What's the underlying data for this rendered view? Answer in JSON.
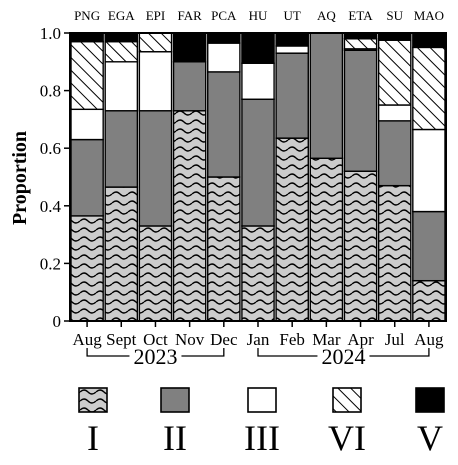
{
  "chart_data": {
    "type": "bar",
    "stacked": true,
    "ylabel": "Proportion",
    "ylim": [
      0,
      1
    ],
    "yticks": [
      "0",
      "0.2",
      "0.4",
      "0.6",
      "0.8",
      "1.0"
    ],
    "top_labels": [
      "PNG",
      "EGA",
      "EPI",
      "FAR",
      "PCA",
      "HU",
      "UT",
      "AQ",
      "ETA",
      "SU",
      "MAO"
    ],
    "categories": [
      "Aug",
      "Sept",
      "Oct",
      "Nov",
      "Dec",
      "Jan",
      "Feb",
      "Mar",
      "Apr",
      "Jul",
      "Aug"
    ],
    "year_groups": [
      {
        "label": "2023",
        "start": 0,
        "end": 4
      },
      {
        "label": "2024",
        "start": 5,
        "end": 10
      }
    ],
    "series": [
      {
        "name": "I",
        "pattern": "wave",
        "values": [
          0.365,
          0.465,
          0.33,
          0.73,
          0.5,
          0.33,
          0.635,
          0.565,
          0.52,
          0.47,
          0.14
        ]
      },
      {
        "name": "II",
        "pattern": "solid-gray",
        "color": "#808080",
        "values": [
          0.265,
          0.265,
          0.4,
          0.17,
          0.365,
          0.44,
          0.295,
          0.435,
          0.42,
          0.225,
          0.24
        ]
      },
      {
        "name": "III",
        "pattern": "white",
        "color": "#ffffff",
        "values": [
          0.105,
          0.17,
          0.205,
          0.0,
          0.1,
          0.125,
          0.025,
          0.0,
          0.005,
          0.055,
          0.285
        ]
      },
      {
        "name": "VI",
        "pattern": "hatch",
        "values": [
          0.235,
          0.07,
          0.065,
          0.0,
          0.0,
          0.0,
          0.0,
          0.0,
          0.035,
          0.225,
          0.285
        ]
      },
      {
        "name": "V",
        "pattern": "solid-black",
        "color": "#000000",
        "values": [
          0.03,
          0.03,
          0.0,
          0.1,
          0.035,
          0.105,
          0.045,
          0.0,
          0.02,
          0.025,
          0.05
        ]
      }
    ],
    "legend": {
      "placement": "bottom",
      "labels": [
        "I",
        "II",
        "III",
        "VI",
        "V"
      ]
    },
    "grid": false
  }
}
